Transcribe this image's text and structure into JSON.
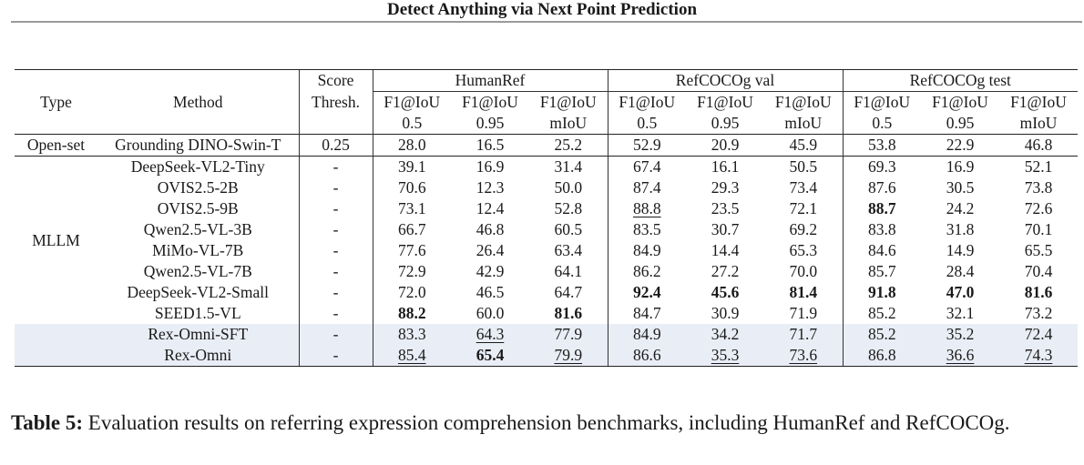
{
  "header": {
    "title": "Detect Anything via Next Point Prediction"
  },
  "table": {
    "col_type": "Type",
    "col_method": "Method",
    "col_thresh_1": "Score",
    "col_thresh_2": "Thresh.",
    "groups": [
      "HumanRef",
      "RefCOCOg val",
      "RefCOCOg test"
    ],
    "sub_line1": [
      "F1@IoU",
      "F1@IoU",
      "F1@IoU"
    ],
    "sub_line2": [
      "0.5",
      "0.95",
      "mIoU"
    ],
    "openset": {
      "type": "Open-set",
      "method": "Grounding DINO-Swin-T",
      "thresh": "0.25",
      "values": [
        "28.0",
        "16.5",
        "25.2",
        "52.9",
        "20.9",
        "45.9",
        "53.8",
        "22.9",
        "46.8"
      ]
    },
    "mllm_type": "MLLM",
    "rows": [
      {
        "method": "DeepSeek-VL2-Tiny",
        "thresh": "-",
        "values": [
          "39.1",
          "16.9",
          "31.4",
          "67.4",
          "16.1",
          "50.5",
          "69.3",
          "16.9",
          "52.1"
        ]
      },
      {
        "method": "OVIS2.5-2B",
        "thresh": "-",
        "values": [
          "70.6",
          "12.3",
          "50.0",
          "87.4",
          "29.3",
          "73.4",
          "87.6",
          "30.5",
          "73.8"
        ]
      },
      {
        "method": "OVIS2.5-9B",
        "thresh": "-",
        "values": [
          "73.1",
          "12.4",
          "52.8",
          "88.8",
          "23.5",
          "72.1",
          "88.7",
          "24.2",
          "72.6"
        ]
      },
      {
        "method": "Qwen2.5-VL-3B",
        "thresh": "-",
        "values": [
          "66.7",
          "46.8",
          "60.5",
          "83.5",
          "30.7",
          "69.2",
          "83.8",
          "31.8",
          "70.1"
        ]
      },
      {
        "method": "MiMo-VL-7B",
        "thresh": "-",
        "values": [
          "77.6",
          "26.4",
          "63.4",
          "84.9",
          "14.4",
          "65.3",
          "84.6",
          "14.9",
          "65.5"
        ]
      },
      {
        "method": "Qwen2.5-VL-7B",
        "thresh": "-",
        "values": [
          "72.9",
          "42.9",
          "64.1",
          "86.2",
          "27.2",
          "70.0",
          "85.7",
          "28.4",
          "70.4"
        ]
      },
      {
        "method": "DeepSeek-VL2-Small",
        "thresh": "-",
        "values": [
          "72.0",
          "46.5",
          "64.7",
          "92.4",
          "45.6",
          "81.4",
          "91.8",
          "47.0",
          "81.6"
        ]
      },
      {
        "method": "SEED1.5-VL",
        "thresh": "-",
        "values": [
          "88.2",
          "60.0",
          "81.6",
          "84.7",
          "30.9",
          "71.9",
          "85.2",
          "32.1",
          "73.2"
        ]
      },
      {
        "method": "Rex-Omni-SFT",
        "thresh": "-",
        "values": [
          "83.3",
          "64.3",
          "77.9",
          "84.9",
          "34.2",
          "71.7",
          "85.2",
          "35.2",
          "72.4"
        ]
      },
      {
        "method": "Rex-Omni",
        "thresh": "-",
        "values": [
          "85.4",
          "65.4",
          "79.9",
          "86.6",
          "35.3",
          "73.6",
          "86.8",
          "36.6",
          "74.3"
        ]
      }
    ]
  },
  "caption": {
    "label": "Table 5:",
    "text": " Evaluation results on referring expression comprehension benchmarks, including HumanRef and RefCOCOg."
  }
}
